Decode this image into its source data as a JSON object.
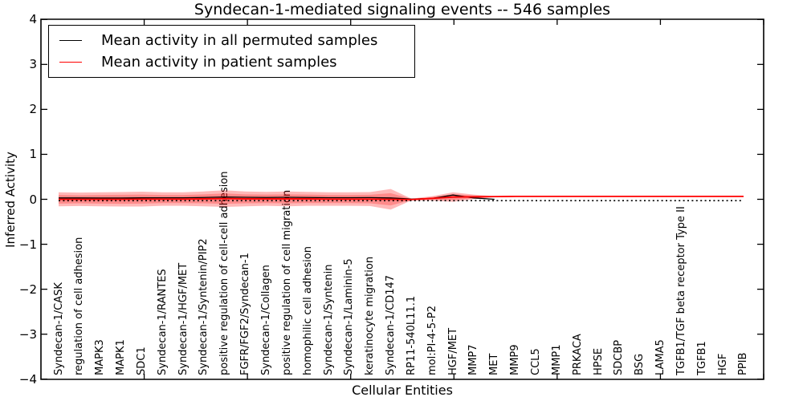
{
  "title": "Syndecan-1-mediated signaling events -- 546 samples",
  "legend": {
    "items": [
      {
        "label": "Mean activity in all permuted samples",
        "color": "#000000"
      },
      {
        "label": "Mean activity in patient samples",
        "color": "#ff0000"
      }
    ]
  },
  "axes": {
    "xlabel": "Cellular Entities",
    "ylabel": "Inferred Activity",
    "yticks": [
      4,
      3,
      2,
      1,
      0,
      -1,
      -2,
      -3,
      -4
    ],
    "xticks": [
      5,
      10,
      15,
      20,
      25,
      30,
      35
    ],
    "xlim": [
      0,
      35
    ],
    "ylim": [
      -4,
      4
    ]
  },
  "chart_data": {
    "type": "line",
    "title": "Syndecan-1-mediated signaling events -- 546 samples",
    "xlabel": "Cellular Entities",
    "ylabel": "Inferred Activity",
    "ylim": [
      -4,
      4
    ],
    "grid": false,
    "legend_position": "upper left",
    "categories": [
      "Syndecan-1/CASK",
      "regulation of cell adhesion",
      "MAPK3",
      "MAPK1",
      "SDC1",
      "Syndecan-1/RANTES",
      "Syndecan-1/HGF/MET",
      "Syndecan-1/Syntenin/PIP2",
      "positive regulation of cell-cell adhesion",
      "FGFR/FGF2/Syndecan-1",
      "Syndecan-1/Collagen",
      "positive regulation of cell migration",
      "homophilic cell adhesion",
      "Syndecan-1/Syntenin",
      "Syndecan-1/Laminin-5",
      "keratinocyte migration",
      "Syndecan-1/CD147",
      "RP11-540L11.1",
      "mol:PI-4-5-P2",
      "HGF/MET",
      "MMP7",
      "MET",
      "MMP9",
      "CCL5",
      "MMP1",
      "PRKACA",
      "HPSE",
      "SDCBP",
      "BSG",
      "LAMA5",
      "TGFB1/TGF beta receptor Type II",
      "TGFB1",
      "HGF",
      "PPIB"
    ],
    "series": [
      {
        "name": "Mean activity in all permuted samples",
        "color": "#000000",
        "style": "solid",
        "values": [
          0.03,
          0.03,
          0.028,
          0.028,
          0.032,
          0.034,
          0.034,
          0.04,
          0.05,
          0.045,
          0.04,
          0.045,
          0.04,
          0.036,
          0.036,
          0.038,
          0.03,
          0.004,
          0.02,
          0.095,
          0.03,
          0.0,
          null,
          null,
          null,
          null,
          null,
          null,
          null,
          null,
          null,
          null,
          null,
          null
        ]
      },
      {
        "name": "Mean activity in patient samples",
        "color": "#ff0000",
        "style": "solid",
        "values": [
          0.0,
          0.0,
          0.0,
          0.0,
          0.005,
          0.005,
          0.005,
          0.01,
          0.015,
          0.01,
          0.01,
          0.01,
          0.01,
          0.005,
          0.005,
          0.005,
          0.0,
          -0.005,
          0.02,
          0.05,
          0.055,
          0.06,
          0.065,
          0.065,
          0.065,
          0.065,
          0.065,
          0.065,
          0.065,
          0.065,
          0.065,
          0.065,
          0.065,
          0.065
        ]
      }
    ],
    "reference_line": {
      "name": "zero-reference",
      "color": "#000000",
      "style": "dotted",
      "constant_value": -0.03
    },
    "bands": [
      {
        "name": "patient-spread-outer",
        "color": "rgba(255,0,0,0.28)",
        "center_series": "Mean activity in patient samples",
        "halfwidths": [
          0.155,
          0.15,
          0.155,
          0.16,
          0.165,
          0.15,
          0.15,
          0.165,
          0.185,
          0.165,
          0.155,
          0.165,
          0.155,
          0.15,
          0.15,
          0.155,
          0.23,
          0.02,
          0.05,
          0.105,
          0.05,
          0.012,
          0,
          0,
          0,
          0,
          0,
          0,
          0,
          0,
          0,
          0,
          0,
          0
        ]
      },
      {
        "name": "patient-spread-inner",
        "color": "rgba(255,0,0,0.25)",
        "center_series": "Mean activity in patient samples",
        "halfwidths": [
          0.095,
          0.09,
          0.095,
          0.1,
          0.1,
          0.09,
          0.09,
          0.1,
          0.115,
          0.1,
          0.095,
          0.1,
          0.095,
          0.09,
          0.09,
          0.095,
          0.135,
          0.012,
          0.03,
          0.065,
          0.03,
          0.008,
          0,
          0,
          0,
          0,
          0,
          0,
          0,
          0,
          0,
          0,
          0,
          0
        ]
      }
    ]
  }
}
